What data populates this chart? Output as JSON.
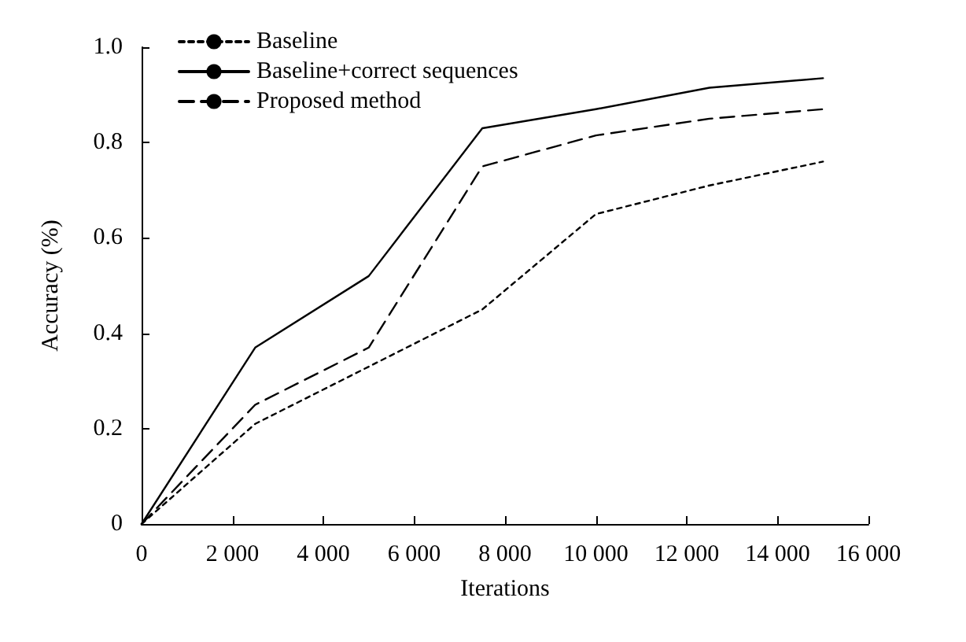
{
  "chart_data": {
    "type": "line",
    "xlabel": "Iterations",
    "ylabel": "Accuracy (%)",
    "x": [
      0,
      2500,
      5000,
      7500,
      10000,
      12500,
      15000
    ],
    "series": [
      {
        "name": "Baseline",
        "color": "#000000",
        "line_style": "dotted",
        "values": [
          0,
          0.21,
          0.33,
          0.45,
          0.65,
          0.71,
          0.76
        ]
      },
      {
        "name": "Baseline+correct sequences",
        "color": "#000000",
        "line_style": "solid",
        "values": [
          0,
          0.37,
          0.52,
          0.83,
          0.87,
          0.915,
          0.935
        ]
      },
      {
        "name": "Proposed method",
        "color": "#000000",
        "line_style": "dashed",
        "values": [
          0,
          0.25,
          0.37,
          0.75,
          0.815,
          0.85,
          0.87
        ]
      }
    ],
    "xlim": [
      0,
      16000
    ],
    "xticks": [
      {
        "value": 0,
        "label": "0"
      },
      {
        "value": 2000,
        "label": "2 000"
      },
      {
        "value": 4000,
        "label": "4 000"
      },
      {
        "value": 6000,
        "label": "6 000"
      },
      {
        "value": 8000,
        "label": "8 000"
      },
      {
        "value": 10000,
        "label": "10 000"
      },
      {
        "value": 12000,
        "label": "12 000"
      },
      {
        "value": 14000,
        "label": "14 000"
      },
      {
        "value": 16000,
        "label": "16 000"
      }
    ],
    "ylim": [
      0,
      1
    ],
    "yticks": [
      {
        "value": 0,
        "label": "0"
      },
      {
        "value": 0.2,
        "label": "0.2"
      },
      {
        "value": 0.4,
        "label": "0.4"
      },
      {
        "value": 0.6,
        "label": "0.6"
      },
      {
        "value": 0.8,
        "label": "0.8"
      },
      {
        "value": 1,
        "label": "1.0"
      }
    ],
    "grid": false,
    "legend": "top left",
    "marker": "none"
  }
}
